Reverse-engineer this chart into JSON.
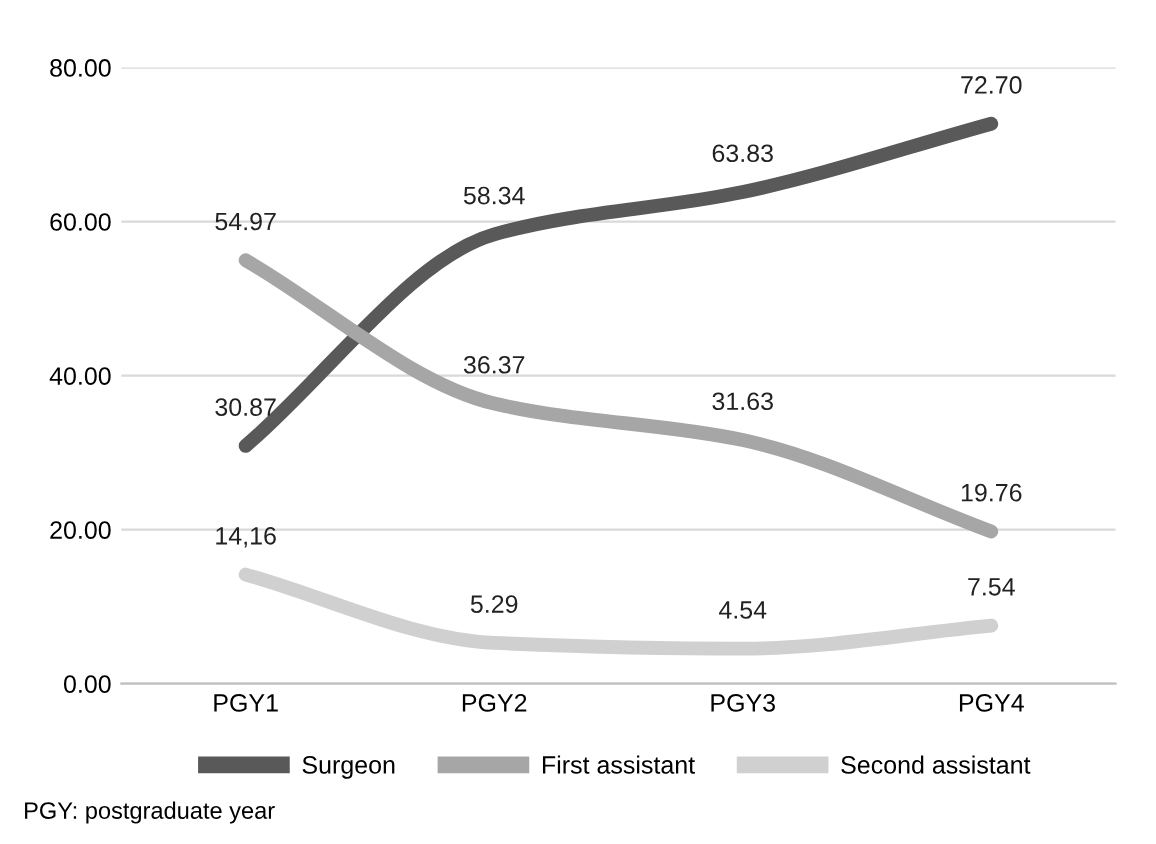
{
  "chart_data": {
    "type": "line",
    "categories": [
      "PGY1",
      "PGY2",
      "PGY3",
      "PGY4"
    ],
    "series": [
      {
        "name": "Surgeon",
        "color": "#595959",
        "values": [
          30.87,
          58.34,
          63.83,
          72.7
        ],
        "value_labels": [
          "30.87",
          "58.34",
          "63.83",
          "72.70"
        ]
      },
      {
        "name": "First assistant",
        "color": "#a6a6a6",
        "values": [
          54.97,
          36.37,
          31.63,
          19.76
        ],
        "value_labels": [
          "54.97",
          "36.37",
          "31.63",
          "19.76"
        ]
      },
      {
        "name": "Second assistant",
        "color": "#d0d0d0",
        "values": [
          14.16,
          5.29,
          4.54,
          7.54
        ],
        "value_labels": [
          "14,16",
          "5.29",
          "4.54",
          "7.54"
        ]
      }
    ],
    "ylim": [
      0,
      80
    ],
    "yticks": [
      {
        "value": 0,
        "label": "0.00"
      },
      {
        "value": 20,
        "label": "20.00"
      },
      {
        "value": 40,
        "label": "40.00"
      },
      {
        "value": 60,
        "label": "60.00"
      },
      {
        "value": 80,
        "label": "80.00"
      }
    ],
    "grid": "y",
    "legend": "bottom",
    "marker": "none",
    "line_style": "solid",
    "annotations": [
      "PGY: postgraduate year"
    ]
  }
}
